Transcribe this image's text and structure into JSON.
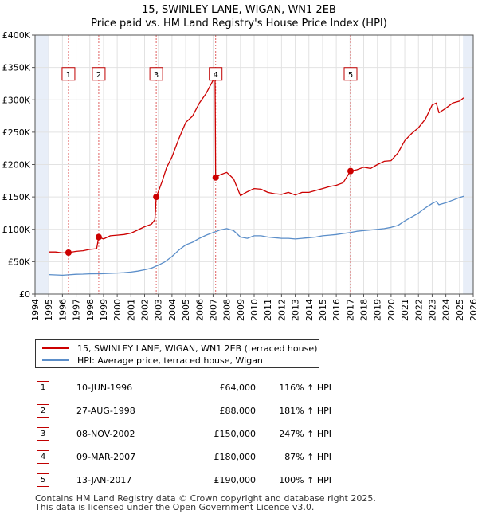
{
  "title_line1": "15, SWINLEY LANE, WIGAN, WN1 2EB",
  "title_line2": "Price paid vs. HM Land Registry's House Price Index (HPI)",
  "chart_data": {
    "type": "line",
    "title": "15, SWINLEY LANE, WIGAN, WN1 2EB — Price paid vs. HM Land Registry's House Price Index (HPI)",
    "xlim": [
      1994,
      2026
    ],
    "ylim": [
      0,
      400000
    ],
    "x_ticks": [
      1994,
      1995,
      1996,
      1997,
      1998,
      1999,
      2000,
      2001,
      2002,
      2003,
      2004,
      2005,
      2006,
      2007,
      2008,
      2009,
      2010,
      2011,
      2012,
      2013,
      2014,
      2015,
      2016,
      2017,
      2018,
      2019,
      2020,
      2021,
      2022,
      2023,
      2024,
      2025,
      2026
    ],
    "y_ticks": [
      0,
      50000,
      100000,
      150000,
      200000,
      250000,
      300000,
      350000,
      400000
    ],
    "y_tick_labels": [
      "£0",
      "£50K",
      "£100K",
      "£150K",
      "£200K",
      "£250K",
      "£300K",
      "£350K",
      "£400K"
    ],
    "grid": true,
    "colors": {
      "property": "#cc0000",
      "hpi": "#5b8ec9",
      "sale_line": "#e06060",
      "shade": "#e8eef8"
    },
    "shaded_ranges": [
      [
        1994,
        1995
      ],
      [
        2025.25,
        2026
      ]
    ],
    "series": [
      {
        "name": "15, SWINLEY LANE, WIGAN, WN1 2EB (terraced house)",
        "points": [
          [
            1995.0,
            65000
          ],
          [
            1995.5,
            65000
          ],
          [
            1996.0,
            63500
          ],
          [
            1996.44,
            64000
          ],
          [
            1997.0,
            66000
          ],
          [
            1997.5,
            67000
          ],
          [
            1998.0,
            69000
          ],
          [
            1998.5,
            70000
          ],
          [
            1998.65,
            88000
          ],
          [
            1999.0,
            85000
          ],
          [
            1999.5,
            90000
          ],
          [
            2000.0,
            91000
          ],
          [
            2000.5,
            92000
          ],
          [
            2001.0,
            94000
          ],
          [
            2001.5,
            99000
          ],
          [
            2002.0,
            104000
          ],
          [
            2002.5,
            108000
          ],
          [
            2002.75,
            115000
          ],
          [
            2002.85,
            150000
          ],
          [
            2003.0,
            158000
          ],
          [
            2003.3,
            175000
          ],
          [
            2003.6,
            195000
          ],
          [
            2004.0,
            212000
          ],
          [
            2004.5,
            240000
          ],
          [
            2005.0,
            265000
          ],
          [
            2005.5,
            275000
          ],
          [
            2006.0,
            295000
          ],
          [
            2006.5,
            310000
          ],
          [
            2007.0,
            330000
          ],
          [
            2007.15,
            332000
          ],
          [
            2007.19,
            180000
          ],
          [
            2007.5,
            184000
          ],
          [
            2008.0,
            188000
          ],
          [
            2008.5,
            178000
          ],
          [
            2009.0,
            152000
          ],
          [
            2009.5,
            158000
          ],
          [
            2010.0,
            163000
          ],
          [
            2010.5,
            162000
          ],
          [
            2011.0,
            157000
          ],
          [
            2011.5,
            155000
          ],
          [
            2012.0,
            154000
          ],
          [
            2012.5,
            157000
          ],
          [
            2013.0,
            153000
          ],
          [
            2013.5,
            157000
          ],
          [
            2014.0,
            157000
          ],
          [
            2014.5,
            160000
          ],
          [
            2015.0,
            163000
          ],
          [
            2015.5,
            166000
          ],
          [
            2016.0,
            168000
          ],
          [
            2016.5,
            172000
          ],
          [
            2017.04,
            190000
          ],
          [
            2017.5,
            192000
          ],
          [
            2018.0,
            196000
          ],
          [
            2018.5,
            194000
          ],
          [
            2019.0,
            200000
          ],
          [
            2019.5,
            205000
          ],
          [
            2020.0,
            206000
          ],
          [
            2020.5,
            218000
          ],
          [
            2021.0,
            237000
          ],
          [
            2021.5,
            248000
          ],
          [
            2022.0,
            257000
          ],
          [
            2022.5,
            270000
          ],
          [
            2023.0,
            292000
          ],
          [
            2023.3,
            295000
          ],
          [
            2023.5,
            280000
          ],
          [
            2024.0,
            287000
          ],
          [
            2024.5,
            295000
          ],
          [
            2025.0,
            298000
          ],
          [
            2025.3,
            303000
          ]
        ]
      },
      {
        "name": "HPI: Average price, terraced house, Wigan",
        "points": [
          [
            1995.0,
            30000
          ],
          [
            1995.5,
            29500
          ],
          [
            1996.0,
            29000
          ],
          [
            1996.44,
            29600
          ],
          [
            1997.0,
            30500
          ],
          [
            1997.5,
            30800
          ],
          [
            1998.0,
            31200
          ],
          [
            1998.65,
            31400
          ],
          [
            1999.0,
            31500
          ],
          [
            1999.5,
            32000
          ],
          [
            2000.0,
            32500
          ],
          [
            2000.5,
            33000
          ],
          [
            2001.0,
            34000
          ],
          [
            2001.5,
            35500
          ],
          [
            2002.0,
            37500
          ],
          [
            2002.5,
            40000
          ],
          [
            2002.85,
            43200
          ],
          [
            2003.0,
            44500
          ],
          [
            2003.5,
            50000
          ],
          [
            2004.0,
            58000
          ],
          [
            2004.5,
            68000
          ],
          [
            2005.0,
            76000
          ],
          [
            2005.5,
            80000
          ],
          [
            2006.0,
            86000
          ],
          [
            2006.5,
            91000
          ],
          [
            2007.0,
            95000
          ],
          [
            2007.19,
            96300
          ],
          [
            2007.5,
            99000
          ],
          [
            2008.0,
            101000
          ],
          [
            2008.5,
            98000
          ],
          [
            2009.0,
            88000
          ],
          [
            2009.5,
            86000
          ],
          [
            2010.0,
            90000
          ],
          [
            2010.5,
            90000
          ],
          [
            2011.0,
            88000
          ],
          [
            2011.5,
            87000
          ],
          [
            2012.0,
            86000
          ],
          [
            2012.5,
            86000
          ],
          [
            2013.0,
            85000
          ],
          [
            2013.5,
            86000
          ],
          [
            2014.0,
            87000
          ],
          [
            2014.5,
            88000
          ],
          [
            2015.0,
            90000
          ],
          [
            2015.5,
            91000
          ],
          [
            2016.0,
            92000
          ],
          [
            2016.5,
            93500
          ],
          [
            2017.04,
            95000
          ],
          [
            2017.5,
            97000
          ],
          [
            2018.0,
            98000
          ],
          [
            2018.5,
            99000
          ],
          [
            2019.0,
            100000
          ],
          [
            2019.5,
            101000
          ],
          [
            2020.0,
            103000
          ],
          [
            2020.5,
            106000
          ],
          [
            2021.0,
            113000
          ],
          [
            2021.5,
            119000
          ],
          [
            2022.0,
            125000
          ],
          [
            2022.5,
            133000
          ],
          [
            2023.0,
            140000
          ],
          [
            2023.3,
            143000
          ],
          [
            2023.5,
            138000
          ],
          [
            2024.0,
            141000
          ],
          [
            2024.5,
            145000
          ],
          [
            2025.0,
            149000
          ],
          [
            2025.3,
            151000
          ]
        ]
      }
    ],
    "sales": [
      {
        "label": "1",
        "x": 1996.44,
        "y": 64000
      },
      {
        "label": "2",
        "x": 1998.65,
        "y": 88000
      },
      {
        "label": "3",
        "x": 2002.85,
        "y": 150000
      },
      {
        "label": "4",
        "x": 2007.19,
        "y": 180000
      },
      {
        "label": "5",
        "x": 2017.04,
        "y": 190000
      }
    ]
  },
  "legend": {
    "property_label": "15, SWINLEY LANE, WIGAN, WN1 2EB (terraced house)",
    "hpi_label": "HPI: Average price, terraced house, Wigan"
  },
  "sales_table": [
    {
      "num": "1",
      "date": "10-JUN-1996",
      "price": "£64,000",
      "hpi": "116% ↑ HPI"
    },
    {
      "num": "2",
      "date": "27-AUG-1998",
      "price": "£88,000",
      "hpi": "181% ↑ HPI"
    },
    {
      "num": "3",
      "date": "08-NOV-2002",
      "price": "£150,000",
      "hpi": "247% ↑ HPI"
    },
    {
      "num": "4",
      "date": "09-MAR-2007",
      "price": "£180,000",
      "hpi": "87% ↑ HPI"
    },
    {
      "num": "5",
      "date": "13-JAN-2017",
      "price": "£190,000",
      "hpi": "100% ↑ HPI"
    }
  ],
  "footer_line1": "Contains HM Land Registry data © Crown copyright and database right 2025.",
  "footer_line2": "This data is licensed under the Open Government Licence v3.0."
}
